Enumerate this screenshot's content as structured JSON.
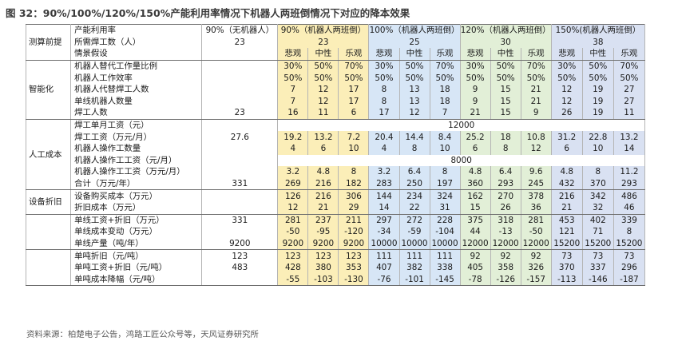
{
  "title": "图 32：90%/100%/120%/150%产能利用率情况下机器人两班倒情况下对应的降本效果",
  "source": "资料来源：柏楚电子公告，鸿路工匠公众号等，天风证券研究所",
  "colors": {
    "g1": "#fbeeb8",
    "g2": "#d7e6f6",
    "g3": "#e2efd7",
    "g4": "#d9e1f2"
  },
  "header": {
    "cap_label": "产能利用率",
    "groups": [
      "90%（无机器人）",
      "90%（机器人两班倒）",
      "100%（机器人两班倒）",
      "120%（机器人两班倒）",
      "150%(机器人两班倒）"
    ]
  },
  "scenarios": [
    "悲观",
    "中性",
    "乐观",
    "悲观",
    "中性",
    "乐观",
    "悲观",
    "中性",
    "乐观",
    "悲观",
    "中性",
    "乐观"
  ],
  "sections": [
    {
      "label": "测算前提",
      "rows": [
        {
          "label": "所需焊工数（人）",
          "base": "23",
          "merged": [
            "23",
            "25",
            "30",
            "38"
          ]
        },
        {
          "label": "情景假设",
          "base": "",
          "scen": true
        }
      ]
    },
    {
      "label": "智能化",
      "rows": [
        {
          "label": "机器人替代工作量比例",
          "base": "",
          "v": [
            "30%",
            "50%",
            "70%",
            "30%",
            "50%",
            "70%",
            "30%",
            "50%",
            "70%",
            "30%",
            "50%",
            "70%"
          ]
        },
        {
          "label": "机器人工作效率",
          "base": "",
          "v": [
            "50%",
            "50%",
            "50%",
            "50%",
            "50%",
            "50%",
            "50%",
            "50%",
            "50%",
            "50%",
            "50%",
            "50%"
          ]
        },
        {
          "label": "机器人代替焊工人数",
          "base": "",
          "v": [
            "7",
            "12",
            "17",
            "8",
            "13",
            "18",
            "9",
            "15",
            "21",
            "12",
            "19",
            "27"
          ]
        },
        {
          "label": "单线机器人数量",
          "base": "",
          "v": [
            "7",
            "12",
            "17",
            "8",
            "13",
            "18",
            "9",
            "15",
            "21",
            "12",
            "19",
            "27"
          ]
        },
        {
          "label": "焊工人数",
          "base": "23",
          "v": [
            "16",
            "11",
            "6",
            "17",
            "12",
            "7",
            "21",
            "15",
            "9",
            "26",
            "19",
            "11"
          ]
        }
      ]
    },
    {
      "label": "人工成本",
      "rows": [
        {
          "label": "焊工单月工资（元）",
          "base": "",
          "span": "12000"
        },
        {
          "label": "焊工工资（万元/月）",
          "base": "27.6",
          "v": [
            "19.2",
            "13.2",
            "7.2",
            "20.4",
            "14.4",
            "8.4",
            "25.2",
            "18",
            "10.8",
            "31.2",
            "22.8",
            "13.2"
          ]
        },
        {
          "label": "机器人操作工数量",
          "base": "",
          "v": [
            "4",
            "6",
            "10",
            "4",
            "8",
            "10",
            "6",
            "8",
            "12",
            "6",
            "10",
            "14"
          ]
        },
        {
          "label": "机器人操作工工资（元/月）",
          "base": "",
          "span": "8000"
        },
        {
          "label": "机器人操作工工资（万元/月）",
          "base": "",
          "v": [
            "3.2",
            "4.8",
            "8",
            "3.2",
            "6.4",
            "8",
            "4.8",
            "6.4",
            "9.6",
            "4.8",
            "8",
            "11.2"
          ]
        },
        {
          "label": "合计（万元/年）",
          "base": "331",
          "v": [
            "269",
            "216",
            "182",
            "283",
            "250",
            "197",
            "360",
            "293",
            "245",
            "432",
            "370",
            "293"
          ]
        }
      ]
    },
    {
      "label": "设备折旧",
      "rows": [
        {
          "label": "设备购买成本（万元）",
          "base": "",
          "v": [
            "126",
            "216",
            "306",
            "144",
            "234",
            "324",
            "162",
            "270",
            "378",
            "216",
            "342",
            "486"
          ]
        },
        {
          "label": "折旧成本（万元）",
          "base": "",
          "v": [
            "12",
            "21",
            "29",
            "14",
            "22",
            "31",
            "15",
            "26",
            "36",
            "21",
            "32",
            "46"
          ]
        }
      ]
    },
    {
      "label": "",
      "rows": [
        {
          "label": "单线工资+折旧（万元）",
          "base": "331",
          "v": [
            "281",
            "237",
            "211",
            "297",
            "272",
            "228",
            "375",
            "318",
            "281",
            "453",
            "402",
            "339"
          ]
        },
        {
          "label": "单线成本变动（万元）",
          "base": "",
          "v": [
            "-50",
            "-95",
            "-120",
            "-34",
            "-59",
            "-104",
            "44",
            "-13",
            "-50",
            "121",
            "71",
            "8"
          ]
        },
        {
          "label": "单线产量（吨/年）",
          "base": "9200",
          "v": [
            "9200",
            "9200",
            "9200",
            "10000",
            "10000",
            "10000",
            "12000",
            "12000",
            "12000",
            "15200",
            "15200",
            "15200"
          ]
        }
      ]
    },
    {
      "label": "",
      "rows": [
        {
          "label": "单吨折旧（元/吨）",
          "base": "123",
          "v": [
            "123",
            "123",
            "123",
            "111",
            "111",
            "111",
            "92",
            "92",
            "92",
            "73",
            "73",
            "73"
          ]
        },
        {
          "label": "单吨工资+折旧（元/吨）",
          "base": "483",
          "v": [
            "428",
            "380",
            "353",
            "407",
            "382",
            "338",
            "405",
            "358",
            "326",
            "370",
            "337",
            "296"
          ]
        },
        {
          "label": "单吨成本降幅（元/吨）",
          "base": "",
          "v": [
            "-55",
            "-103",
            "-130",
            "-76",
            "-101",
            "-145",
            "-78",
            "-126",
            "-157",
            "-113",
            "-146",
            "-187"
          ]
        }
      ]
    }
  ]
}
